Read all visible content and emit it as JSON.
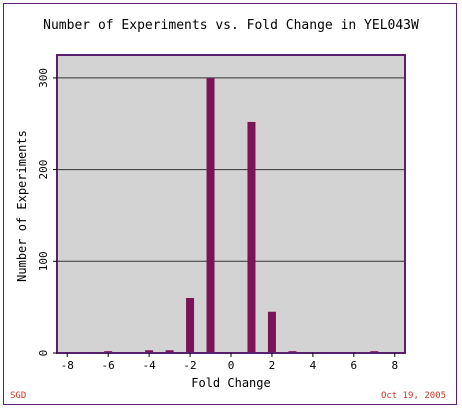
{
  "chart_data": {
    "type": "bar",
    "title": "Number of Experiments vs. Fold Change in YEL043W",
    "xlabel": "Fold Change",
    "ylabel": "Number of Experiments",
    "xlim": [
      -8.5,
      8.5
    ],
    "ylim": [
      0,
      325
    ],
    "xticks": [
      -8,
      -6,
      -4,
      -2,
      0,
      2,
      4,
      6,
      8
    ],
    "yticks": [
      0,
      100,
      200,
      300
    ],
    "grid": "horizontal",
    "x": [
      -6,
      -4,
      -3,
      -2,
      -1,
      1,
      2,
      3,
      7
    ],
    "values": [
      2,
      3,
      3,
      60,
      300,
      252,
      45,
      2,
      2
    ]
  },
  "footer": {
    "source": "SGD",
    "date": "Oct 19, 2005"
  },
  "colors": {
    "bar": "#7b1456",
    "plot_bg": "#d3d3d3",
    "axis": "#5a1f6e",
    "footer_text": "#c0392b",
    "gridline": "#333333"
  }
}
